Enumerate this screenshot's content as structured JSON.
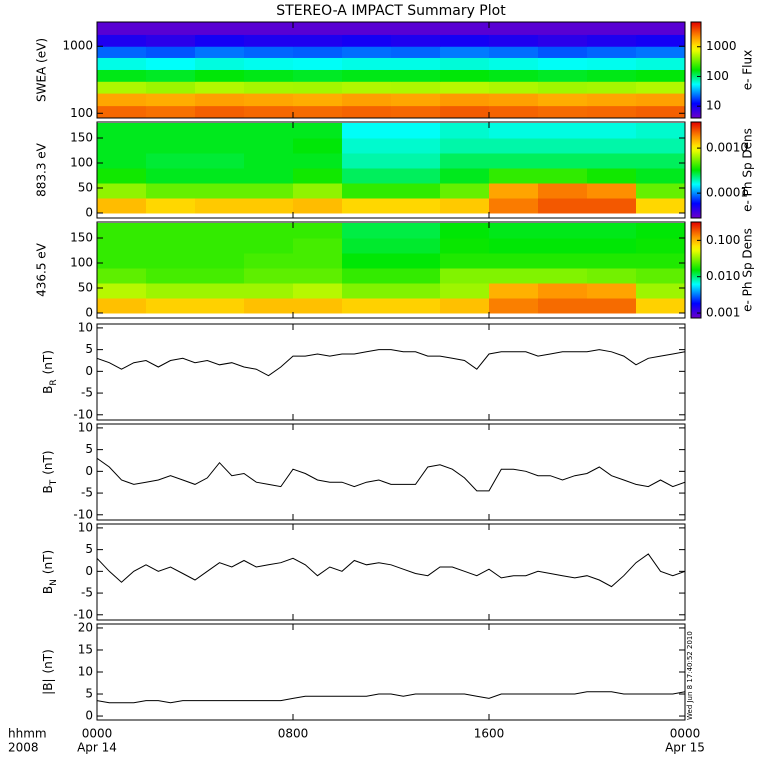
{
  "chart_data": [
    {
      "type": "heatmap",
      "title": "STEREO-A IMPACT Summary Plot",
      "ylabel": "SWEA (eV)",
      "xlim": [
        0,
        24
      ],
      "x_bins": [
        0,
        2,
        4,
        6,
        8,
        10,
        12,
        14,
        16,
        18,
        20,
        22,
        24
      ],
      "y_bins": [
        85,
        130,
        200,
        300,
        450,
        680,
        1000,
        1500,
        2300
      ],
      "z": [
        [
          3000,
          2800,
          3200,
          3000,
          2900,
          3100,
          3000,
          3300,
          3100,
          2900,
          3000,
          3200
        ],
        [
          1800,
          1700,
          1900,
          1800,
          1700,
          1900,
          1800,
          2000,
          1900,
          1700,
          1800,
          1900
        ],
        [
          500,
          450,
          520,
          480,
          470,
          510,
          500,
          540,
          500,
          460,
          480,
          520
        ],
        [
          150,
          140,
          160,
          150,
          140,
          150,
          150,
          160,
          150,
          140,
          150,
          160
        ],
        [
          60,
          55,
          62,
          58,
          56,
          60,
          60,
          64,
          60,
          56,
          58,
          62
        ],
        [
          22,
          20,
          24,
          22,
          21,
          23,
          22,
          25,
          23,
          20,
          22,
          24
        ],
        [
          9,
          8,
          10,
          9,
          9,
          10,
          9,
          10,
          9,
          8,
          9,
          10
        ],
        [
          5,
          5,
          5,
          5,
          5,
          5,
          5,
          5,
          5,
          5,
          5,
          5
        ]
      ],
      "ylim": [
        85,
        2300
      ],
      "ylog": true,
      "yticks": [
        100,
        1000
      ],
      "clim": [
        4,
        6800
      ],
      "clog": true,
      "cticks": [
        10,
        100,
        1000
      ],
      "colorbar_label": "e- Flux"
    },
    {
      "type": "heatmap",
      "ylabel": "883.3 eV",
      "xlim": [
        0,
        24
      ],
      "x_bins": [
        0,
        2,
        4,
        6,
        8,
        10,
        12,
        14,
        16,
        18,
        20,
        22,
        24
      ],
      "y_bins": [
        0,
        30,
        60,
        90,
        120,
        150,
        180
      ],
      "z": [
        [
          0.0014,
          0.0012,
          0.0013,
          0.0013,
          0.0014,
          0.0012,
          0.0012,
          0.0013,
          0.002,
          0.0024,
          0.0024,
          0.0012
        ],
        [
          0.0006,
          0.0005,
          0.0005,
          0.0005,
          0.0006,
          0.0004,
          0.0004,
          0.0005,
          0.0016,
          0.002,
          0.0018,
          0.0005
        ],
        [
          0.00035,
          0.0003,
          0.0003,
          0.0003,
          0.00035,
          0.00025,
          0.00025,
          0.0003,
          0.0004,
          0.0004,
          0.00035,
          0.0003
        ],
        [
          0.0003,
          0.00028,
          0.00028,
          0.0003,
          0.0003,
          0.0002,
          0.0002,
          0.00025,
          0.00025,
          0.00025,
          0.00025,
          0.00025
        ],
        [
          0.0003,
          0.0003,
          0.0003,
          0.0003,
          0.00032,
          0.00018,
          0.00018,
          0.0002,
          0.0002,
          0.0002,
          0.0002,
          0.0002
        ],
        [
          0.0003,
          0.0003,
          0.0003,
          0.0003,
          0.0003,
          0.00016,
          0.00016,
          0.00018,
          0.00017,
          0.00017,
          0.00017,
          0.00018
        ]
      ],
      "ylim": [
        -10,
        182
      ],
      "yticks": [
        0,
        50,
        100,
        150
      ],
      "clim": [
        2.8e-05,
        0.0038
      ],
      "clog": true,
      "cticks": [
        0.0001,
        {
          "value": 0.001,
          "label": "0.0010"
        }
      ],
      "colorbar_label": "e- Ph Sp Dens"
    },
    {
      "type": "heatmap",
      "ylabel": "436.5 eV",
      "xlim": [
        0,
        24
      ],
      "x_bins": [
        0,
        2,
        4,
        6,
        8,
        10,
        12,
        14,
        16,
        18,
        20,
        22,
        24
      ],
      "y_bins": [
        0,
        30,
        60,
        90,
        120,
        150,
        180
      ],
      "z": [
        [
          0.09,
          0.08,
          0.08,
          0.09,
          0.09,
          0.08,
          0.08,
          0.09,
          0.14,
          0.16,
          0.16,
          0.08
        ],
        [
          0.04,
          0.035,
          0.035,
          0.035,
          0.04,
          0.03,
          0.03,
          0.035,
          0.1,
          0.12,
          0.11,
          0.035
        ],
        [
          0.025,
          0.022,
          0.022,
          0.025,
          0.025,
          0.02,
          0.02,
          0.03,
          0.03,
          0.03,
          0.028,
          0.025
        ],
        [
          0.02,
          0.02,
          0.02,
          0.022,
          0.022,
          0.015,
          0.015,
          0.018,
          0.018,
          0.018,
          0.018,
          0.018
        ],
        [
          0.02,
          0.02,
          0.02,
          0.02,
          0.022,
          0.013,
          0.013,
          0.016,
          0.015,
          0.015,
          0.015,
          0.016
        ],
        [
          0.02,
          0.02,
          0.02,
          0.02,
          0.02,
          0.012,
          0.012,
          0.015,
          0.014,
          0.014,
          0.014,
          0.015
        ]
      ],
      "ylim": [
        -10,
        182
      ],
      "yticks": [
        0,
        50,
        100,
        150
      ],
      "clim": [
        0.00073,
        0.32
      ],
      "clog": true,
      "cticks": [
        0.001,
        {
          "value": 0.01,
          "label": "0.010"
        },
        {
          "value": 0.1,
          "label": "0.100"
        }
      ],
      "colorbar_label": "e- Ph Sp Dens"
    },
    {
      "type": "line",
      "ylabel": "B",
      "ylabel_sub": "R",
      "ylabel_unit": "(nT)",
      "color": "#000000",
      "xlim": [
        0,
        24
      ],
      "ylim": [
        -11.2,
        10.9
      ],
      "yticks": [
        -10,
        -5,
        0,
        5,
        10
      ],
      "x": [
        0,
        0.5,
        1,
        1.5,
        2,
        2.5,
        3,
        3.5,
        4,
        4.5,
        5,
        5.5,
        6,
        6.5,
        7,
        7.5,
        8,
        8.5,
        9,
        9.5,
        10,
        10.5,
        11,
        11.5,
        12,
        12.5,
        13,
        13.5,
        14,
        14.5,
        15,
        15.5,
        16,
        16.5,
        17,
        17.5,
        18,
        18.5,
        19,
        19.5,
        20,
        20.5,
        21,
        21.5,
        22,
        22.5,
        23,
        23.5,
        24
      ],
      "values": [
        3,
        2,
        0.5,
        2,
        2.5,
        1,
        2.5,
        3,
        2,
        2.5,
        1.5,
        2,
        1,
        0.5,
        -1,
        1,
        3.5,
        3.5,
        4,
        3.5,
        4,
        4,
        4.5,
        5,
        5,
        4.5,
        4.5,
        3.5,
        3.5,
        3,
        2.5,
        0.5,
        4,
        4.5,
        4.5,
        4.5,
        3.5,
        4,
        4.5,
        4.5,
        4.5,
        5,
        4.5,
        3.5,
        1.5,
        3,
        3.5,
        4,
        4.5
      ]
    },
    {
      "type": "line",
      "ylabel": "B",
      "ylabel_sub": "T",
      "ylabel_unit": "(nT)",
      "color": "#000000",
      "xlim": [
        0,
        24
      ],
      "ylim": [
        -11.2,
        10.9
      ],
      "yticks": [
        -10,
        -5,
        0,
        5,
        10
      ],
      "x": [
        0,
        0.5,
        1,
        1.5,
        2,
        2.5,
        3,
        3.5,
        4,
        4.5,
        5,
        5.5,
        6,
        6.5,
        7,
        7.5,
        8,
        8.5,
        9,
        9.5,
        10,
        10.5,
        11,
        11.5,
        12,
        12.5,
        13,
        13.5,
        14,
        14.5,
        15,
        15.5,
        16,
        16.5,
        17,
        17.5,
        18,
        18.5,
        19,
        19.5,
        20,
        20.5,
        21,
        21.5,
        22,
        22.5,
        23,
        23.5,
        24
      ],
      "values": [
        3,
        1,
        -2,
        -3,
        -2.5,
        -2,
        -1,
        -2,
        -3,
        -1.5,
        2,
        -1,
        -0.5,
        -2.5,
        -3,
        -3.5,
        0.5,
        -0.5,
        -2,
        -2.5,
        -2.5,
        -3.5,
        -2.5,
        -2,
        -3,
        -3,
        -3,
        1,
        1.5,
        0.5,
        -1.5,
        -4.5,
        -4.5,
        0.5,
        0.5,
        0,
        -1,
        -1,
        -2,
        -1,
        -0.5,
        1,
        -1,
        -2,
        -3,
        -3.5,
        -2,
        -3.5,
        -2.5
      ]
    },
    {
      "type": "line",
      "ylabel": "B",
      "ylabel_sub": "N",
      "ylabel_unit": "(nT)",
      "color": "#000000",
      "xlim": [
        0,
        24
      ],
      "ylim": [
        -11.2,
        10.9
      ],
      "yticks": [
        -10,
        -5,
        0,
        5,
        10
      ],
      "x": [
        0,
        0.5,
        1,
        1.5,
        2,
        2.5,
        3,
        3.5,
        4,
        4.5,
        5,
        5.5,
        6,
        6.5,
        7,
        7.5,
        8,
        8.5,
        9,
        9.5,
        10,
        10.5,
        11,
        11.5,
        12,
        12.5,
        13,
        13.5,
        14,
        14.5,
        15,
        15.5,
        16,
        16.5,
        17,
        17.5,
        18,
        18.5,
        19,
        19.5,
        20,
        20.5,
        21,
        21.5,
        22,
        22.5,
        23,
        23.5,
        24
      ],
      "values": [
        3,
        0,
        -2.5,
        0,
        1.5,
        0,
        1,
        -0.5,
        -2,
        0,
        2,
        1,
        2.5,
        1,
        1.5,
        2,
        3,
        1.5,
        -1,
        1,
        0,
        2.5,
        1.5,
        2,
        1.5,
        0.5,
        -0.5,
        -1,
        1,
        1,
        0,
        -1,
        0.5,
        -1.5,
        -1,
        -1,
        0,
        -0.5,
        -1,
        -1.5,
        -1,
        -2,
        -3.5,
        -1,
        2,
        4,
        0,
        -1,
        0
      ]
    },
    {
      "type": "line",
      "ylabel": "|B|",
      "ylabel_unit": "(nT)",
      "color": "#000000",
      "xlim": [
        0,
        24
      ],
      "ylim": [
        -0.9,
        20.9
      ],
      "yticks": [
        0,
        5,
        10,
        15,
        20
      ],
      "x": [
        0,
        0.5,
        1,
        1.5,
        2,
        2.5,
        3,
        3.5,
        4,
        4.5,
        5,
        5.5,
        6,
        6.5,
        7,
        7.5,
        8,
        8.5,
        9,
        9.5,
        10,
        10.5,
        11,
        11.5,
        12,
        12.5,
        13,
        13.5,
        14,
        14.5,
        15,
        15.5,
        16,
        16.5,
        17,
        17.5,
        18,
        18.5,
        19,
        19.5,
        20,
        20.5,
        21,
        21.5,
        22,
        22.5,
        23,
        23.5,
        24
      ],
      "values": [
        3.5,
        3,
        3,
        3,
        3.5,
        3.5,
        3,
        3.5,
        3.5,
        3.5,
        3.5,
        3.5,
        3.5,
        3.5,
        3.5,
        3.5,
        4,
        4.5,
        4.5,
        4.5,
        4.5,
        4.5,
        4.5,
        5,
        5,
        4.5,
        5,
        5,
        5,
        5,
        5,
        4.5,
        4,
        5,
        5,
        5,
        5,
        5,
        5,
        5,
        5.5,
        5.5,
        5.5,
        5,
        5,
        5,
        5,
        5,
        5.5
      ],
      "xticks": [
        {
          "value": 0,
          "label": "0000"
        },
        {
          "value": 8,
          "label": "0800"
        },
        {
          "value": 16,
          "label": "1600"
        },
        {
          "value": 24,
          "label": "0000"
        }
      ],
      "date_labels": [
        {
          "value": 0,
          "label": "Apr 14"
        },
        {
          "value": 24,
          "label": "Apr 15"
        }
      ],
      "x_unit_label": "hhmm",
      "year": "2008",
      "annotation": "Wed Jun  8 17:40:52 2010"
    }
  ]
}
